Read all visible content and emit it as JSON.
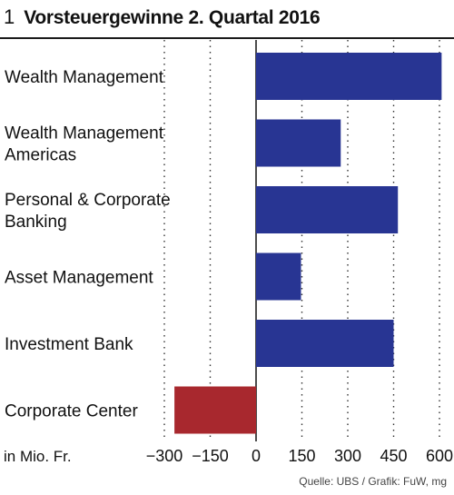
{
  "header": {
    "number": "1",
    "title": "Vorsteuergewinne 2. Quartal 2016"
  },
  "chart_data": {
    "type": "bar",
    "orientation": "horizontal",
    "title": "Vorsteuergewinne 2. Quartal 2016",
    "unit_label": "in Mio. Fr.",
    "categories": [
      [
        "Wealth Management"
      ],
      [
        "Wealth Management",
        "Americas"
      ],
      [
        "Personal & Corporate",
        "Banking"
      ],
      [
        "Asset Management"
      ],
      [
        "Investment Bank"
      ],
      [
        "Corporate Center"
      ]
    ],
    "values": [
      607,
      277,
      464,
      147,
      450,
      -267
    ],
    "xlim": [
      -330,
      610
    ],
    "ticks": [
      -300,
      -150,
      0,
      150,
      300,
      450,
      600
    ],
    "tick_labels": [
      "−300",
      "−150",
      "0",
      "150",
      "300",
      "450",
      "600"
    ],
    "grid": "vertical dotted",
    "colors": {
      "positive": "#283593",
      "negative": "#a8282e"
    }
  },
  "source": "Quelle: UBS / Grafik: FuW, mg"
}
